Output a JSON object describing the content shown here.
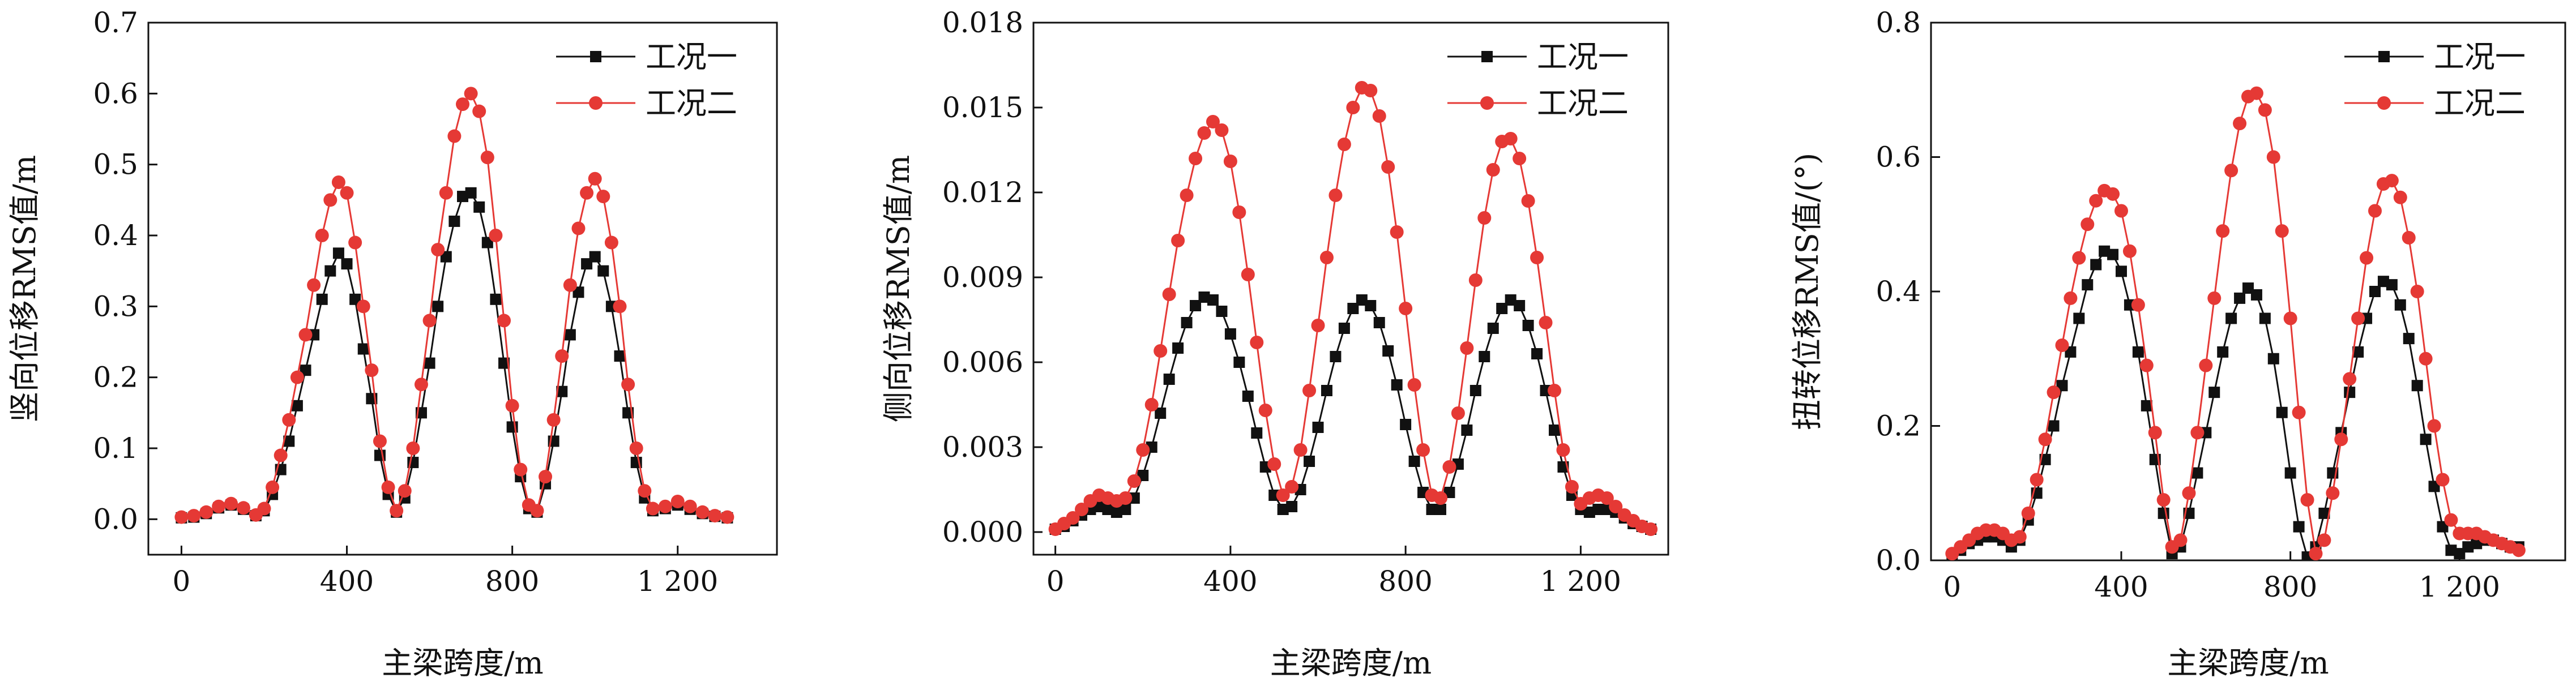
{
  "chart_data": [
    {
      "type": "line",
      "xlabel": "主梁跨度/m",
      "ylabel": "竖向位移RMS值/m",
      "xlim": [
        -80,
        1440
      ],
      "ylim": [
        -0.05,
        0.7
      ],
      "xticks": [
        0,
        400,
        800,
        1200
      ],
      "xtick_labels": [
        "0",
        "400",
        "800",
        "1 200"
      ],
      "yticks": [
        0,
        0.1,
        0.2,
        0.3,
        0.4,
        0.5,
        0.6,
        0.7
      ],
      "ytick_labels": [
        "0.0",
        "0.1",
        "0.2",
        "0.3",
        "0.4",
        "0.5",
        "0.6",
        "0.7"
      ],
      "grid": false,
      "legend": "top-right",
      "series": [
        {
          "name": "工况一",
          "color": "#111111",
          "marker": "square",
          "x": [
            0,
            30,
            60,
            90,
            120,
            150,
            180,
            200,
            220,
            240,
            260,
            280,
            300,
            320,
            340,
            360,
            380,
            400,
            420,
            440,
            460,
            480,
            500,
            520,
            540,
            560,
            580,
            600,
            620,
            640,
            660,
            680,
            700,
            720,
            740,
            760,
            780,
            800,
            820,
            840,
            860,
            880,
            900,
            920,
            940,
            960,
            980,
            1000,
            1020,
            1040,
            1060,
            1080,
            1100,
            1120,
            1140,
            1170,
            1200,
            1230,
            1260,
            1290,
            1320
          ],
          "y": [
            0.002,
            0.003,
            0.008,
            0.016,
            0.02,
            0.014,
            0.005,
            0.012,
            0.035,
            0.07,
            0.11,
            0.16,
            0.21,
            0.26,
            0.31,
            0.35,
            0.375,
            0.36,
            0.31,
            0.24,
            0.17,
            0.09,
            0.035,
            0.01,
            0.03,
            0.08,
            0.15,
            0.22,
            0.3,
            0.37,
            0.42,
            0.455,
            0.46,
            0.44,
            0.39,
            0.31,
            0.22,
            0.13,
            0.06,
            0.015,
            0.01,
            0.05,
            0.11,
            0.18,
            0.26,
            0.32,
            0.36,
            0.37,
            0.35,
            0.3,
            0.23,
            0.15,
            0.08,
            0.03,
            0.012,
            0.015,
            0.02,
            0.014,
            0.008,
            0.004,
            0.002
          ]
        },
        {
          "name": "工况二",
          "color": "#e53935",
          "marker": "circle",
          "x": [
            0,
            30,
            60,
            90,
            120,
            150,
            180,
            200,
            220,
            240,
            260,
            280,
            300,
            320,
            340,
            360,
            380,
            400,
            420,
            440,
            460,
            480,
            500,
            520,
            540,
            560,
            580,
            600,
            620,
            640,
            660,
            680,
            700,
            720,
            740,
            760,
            780,
            800,
            820,
            840,
            860,
            880,
            900,
            920,
            940,
            960,
            980,
            1000,
            1020,
            1040,
            1060,
            1080,
            1100,
            1120,
            1140,
            1170,
            1200,
            1230,
            1260,
            1290,
            1320
          ],
          "y": [
            0.003,
            0.005,
            0.01,
            0.018,
            0.022,
            0.016,
            0.006,
            0.015,
            0.045,
            0.09,
            0.14,
            0.2,
            0.26,
            0.33,
            0.4,
            0.45,
            0.475,
            0.46,
            0.39,
            0.3,
            0.21,
            0.11,
            0.045,
            0.012,
            0.04,
            0.1,
            0.19,
            0.28,
            0.38,
            0.46,
            0.54,
            0.585,
            0.6,
            0.575,
            0.51,
            0.4,
            0.28,
            0.16,
            0.07,
            0.02,
            0.012,
            0.06,
            0.14,
            0.23,
            0.33,
            0.41,
            0.46,
            0.48,
            0.455,
            0.39,
            0.3,
            0.19,
            0.1,
            0.04,
            0.015,
            0.018,
            0.025,
            0.018,
            0.01,
            0.005,
            0.003
          ]
        }
      ]
    },
    {
      "type": "line",
      "xlabel": "主梁跨度/m",
      "ylabel": "侧向位移RMS值/m",
      "xlim": [
        -50,
        1400
      ],
      "ylim": [
        -0.0008,
        0.018
      ],
      "xticks": [
        0,
        400,
        800,
        1200
      ],
      "xtick_labels": [
        "0",
        "400",
        "800",
        "1 200"
      ],
      "yticks": [
        0,
        0.003,
        0.006,
        0.009,
        0.012,
        0.015,
        0.018
      ],
      "ytick_labels": [
        "0.000",
        "0.003",
        "0.006",
        "0.009",
        "0.012",
        "0.015",
        "0.018"
      ],
      "grid": false,
      "legend": "top-right",
      "series": [
        {
          "name": "工况一",
          "color": "#111111",
          "marker": "square",
          "x": [
            0,
            20,
            40,
            60,
            80,
            100,
            120,
            140,
            160,
            180,
            200,
            220,
            240,
            260,
            280,
            300,
            320,
            340,
            360,
            380,
            400,
            420,
            440,
            460,
            480,
            500,
            520,
            540,
            560,
            580,
            600,
            620,
            640,
            660,
            680,
            700,
            720,
            740,
            760,
            780,
            800,
            820,
            840,
            860,
            880,
            900,
            920,
            940,
            960,
            980,
            1000,
            1020,
            1040,
            1060,
            1080,
            1100,
            1120,
            1140,
            1160,
            1180,
            1200,
            1220,
            1240,
            1260,
            1280,
            1300,
            1320,
            1340,
            1360
          ],
          "y": [
            0.0001,
            0.0002,
            0.0004,
            0.0006,
            0.0008,
            0.0009,
            0.0008,
            0.0007,
            0.0008,
            0.0012,
            0.002,
            0.003,
            0.0042,
            0.0054,
            0.0065,
            0.0074,
            0.008,
            0.0083,
            0.0082,
            0.0078,
            0.007,
            0.006,
            0.0048,
            0.0035,
            0.0023,
            0.0013,
            0.0008,
            0.0009,
            0.0015,
            0.0025,
            0.0037,
            0.005,
            0.0062,
            0.0072,
            0.0079,
            0.0082,
            0.008,
            0.0074,
            0.0064,
            0.0052,
            0.0038,
            0.0025,
            0.0014,
            0.0008,
            0.0008,
            0.0014,
            0.0024,
            0.0036,
            0.005,
            0.0062,
            0.0072,
            0.0079,
            0.0082,
            0.008,
            0.0073,
            0.0063,
            0.005,
            0.0036,
            0.0023,
            0.0013,
            0.0008,
            0.0007,
            0.0008,
            0.0008,
            0.0007,
            0.0005,
            0.0003,
            0.0002,
            0.0001
          ]
        },
        {
          "name": "工况二",
          "color": "#e53935",
          "marker": "circle",
          "x": [
            0,
            20,
            40,
            60,
            80,
            100,
            120,
            140,
            160,
            180,
            200,
            220,
            240,
            260,
            280,
            300,
            320,
            340,
            360,
            380,
            400,
            420,
            440,
            460,
            480,
            500,
            520,
            540,
            560,
            580,
            600,
            620,
            640,
            660,
            680,
            700,
            720,
            740,
            760,
            780,
            800,
            820,
            840,
            860,
            880,
            900,
            920,
            940,
            960,
            980,
            1000,
            1020,
            1040,
            1060,
            1080,
            1100,
            1120,
            1140,
            1160,
            1180,
            1200,
            1220,
            1240,
            1260,
            1280,
            1300,
            1320,
            1340,
            1360
          ],
          "y": [
            0.0001,
            0.0003,
            0.0005,
            0.0008,
            0.0011,
            0.0013,
            0.0012,
            0.0011,
            0.0012,
            0.0018,
            0.0029,
            0.0045,
            0.0064,
            0.0084,
            0.0103,
            0.0119,
            0.0132,
            0.0141,
            0.0145,
            0.0142,
            0.0131,
            0.0113,
            0.0091,
            0.0067,
            0.0043,
            0.0024,
            0.0013,
            0.0016,
            0.0029,
            0.005,
            0.0073,
            0.0097,
            0.0119,
            0.0137,
            0.015,
            0.0157,
            0.0156,
            0.0147,
            0.0129,
            0.0106,
            0.0079,
            0.0052,
            0.0029,
            0.0013,
            0.0012,
            0.0023,
            0.0042,
            0.0065,
            0.0089,
            0.0111,
            0.0128,
            0.0138,
            0.0139,
            0.0132,
            0.0117,
            0.0097,
            0.0074,
            0.005,
            0.0029,
            0.0016,
            0.001,
            0.0012,
            0.0013,
            0.0012,
            0.0009,
            0.0006,
            0.0004,
            0.0002,
            0.0001
          ]
        }
      ]
    },
    {
      "type": "line",
      "xlabel": "主梁跨度/m",
      "ylabel": "扭转位移RMS值/(°)",
      "xlim": [
        -50,
        1450
      ],
      "ylim": [
        0,
        0.8
      ],
      "xticks": [
        0,
        400,
        800,
        1200
      ],
      "xtick_labels": [
        "0",
        "400",
        "800",
        "1 200"
      ],
      "yticks": [
        0,
        0.2,
        0.4,
        0.6,
        0.8
      ],
      "ytick_labels": [
        "0.0",
        "0.2",
        "0.4",
        "0.6",
        "0.8"
      ],
      "grid": false,
      "legend": "top-right",
      "series": [
        {
          "name": "工况一",
          "color": "#111111",
          "marker": "square",
          "x": [
            0,
            20,
            40,
            60,
            80,
            100,
            120,
            140,
            160,
            180,
            200,
            220,
            240,
            260,
            280,
            300,
            320,
            340,
            360,
            380,
            400,
            420,
            440,
            460,
            480,
            500,
            520,
            540,
            560,
            580,
            600,
            620,
            640,
            660,
            680,
            700,
            720,
            740,
            760,
            780,
            800,
            820,
            840,
            860,
            880,
            900,
            920,
            940,
            960,
            980,
            1000,
            1020,
            1040,
            1060,
            1080,
            1100,
            1120,
            1140,
            1160,
            1180,
            1200,
            1220,
            1240,
            1260,
            1280,
            1300,
            1320,
            1340
          ],
          "y": [
            0.005,
            0.015,
            0.025,
            0.03,
            0.035,
            0.035,
            0.03,
            0.02,
            0.03,
            0.06,
            0.1,
            0.15,
            0.2,
            0.26,
            0.31,
            0.36,
            0.41,
            0.44,
            0.46,
            0.455,
            0.43,
            0.38,
            0.31,
            0.23,
            0.15,
            0.07,
            0.01,
            0.02,
            0.07,
            0.13,
            0.19,
            0.25,
            0.31,
            0.36,
            0.39,
            0.405,
            0.395,
            0.36,
            0.3,
            0.22,
            0.13,
            0.05,
            0.005,
            0.02,
            0.07,
            0.13,
            0.19,
            0.25,
            0.31,
            0.36,
            0.4,
            0.415,
            0.41,
            0.38,
            0.33,
            0.26,
            0.18,
            0.11,
            0.05,
            0.015,
            0.01,
            0.02,
            0.025,
            0.03,
            0.03,
            0.025,
            0.02,
            0.02
          ]
        },
        {
          "name": "工况二",
          "color": "#e53935",
          "marker": "circle",
          "x": [
            0,
            20,
            40,
            60,
            80,
            100,
            120,
            140,
            160,
            180,
            200,
            220,
            240,
            260,
            280,
            300,
            320,
            340,
            360,
            380,
            400,
            420,
            440,
            460,
            480,
            500,
            520,
            540,
            560,
            580,
            600,
            620,
            640,
            660,
            680,
            700,
            720,
            740,
            760,
            780,
            800,
            820,
            840,
            860,
            880,
            900,
            920,
            940,
            960,
            980,
            1000,
            1020,
            1040,
            1060,
            1080,
            1100,
            1120,
            1140,
            1160,
            1180,
            1200,
            1220,
            1240,
            1260,
            1280,
            1300,
            1320,
            1340
          ],
          "y": [
            0.01,
            0.02,
            0.03,
            0.04,
            0.045,
            0.045,
            0.04,
            0.03,
            0.035,
            0.07,
            0.12,
            0.18,
            0.25,
            0.32,
            0.39,
            0.45,
            0.5,
            0.535,
            0.55,
            0.545,
            0.52,
            0.46,
            0.38,
            0.29,
            0.19,
            0.09,
            0.02,
            0.03,
            0.1,
            0.19,
            0.29,
            0.39,
            0.49,
            0.58,
            0.65,
            0.69,
            0.695,
            0.67,
            0.6,
            0.49,
            0.36,
            0.22,
            0.09,
            0.01,
            0.03,
            0.1,
            0.18,
            0.27,
            0.36,
            0.45,
            0.52,
            0.56,
            0.565,
            0.54,
            0.48,
            0.4,
            0.3,
            0.2,
            0.12,
            0.06,
            0.04,
            0.04,
            0.04,
            0.035,
            0.03,
            0.025,
            0.02,
            0.015
          ]
        }
      ]
    }
  ]
}
